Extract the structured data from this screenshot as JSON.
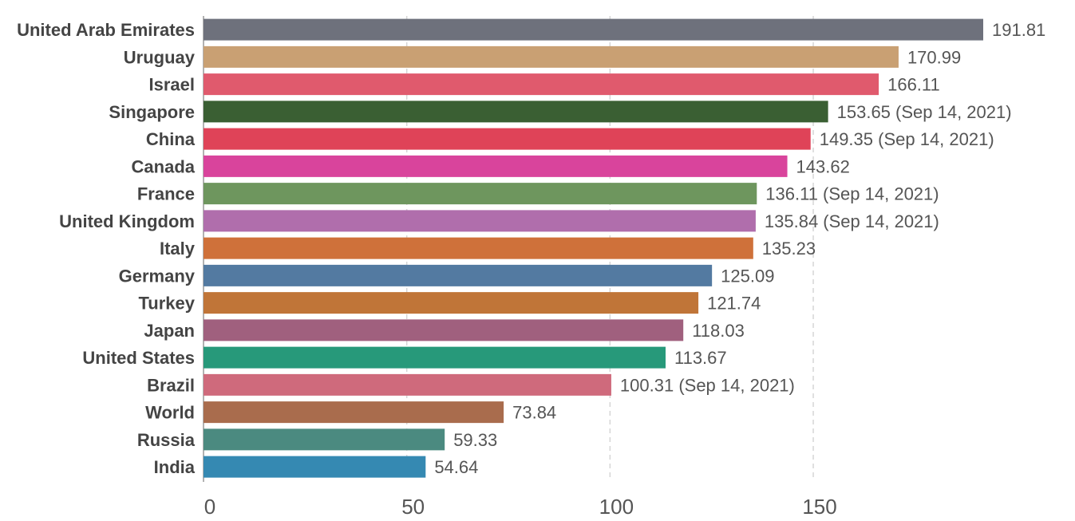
{
  "chart_data": {
    "type": "bar",
    "orientation": "horizontal",
    "title": "",
    "xlabel": "",
    "ylabel": "",
    "xlim": [
      0,
      191.81
    ],
    "x_ticks": [
      0,
      50,
      100,
      150
    ],
    "grid": true,
    "legend": "none",
    "bars": [
      {
        "category": "United Arab Emirates",
        "value": 191.81,
        "label": "191.81",
        "color": "#6e717c"
      },
      {
        "category": "Uruguay",
        "value": 170.99,
        "label": "170.99",
        "color": "#c9a073"
      },
      {
        "category": "Israel",
        "value": 166.11,
        "label": "166.11",
        "color": "#e05a6d"
      },
      {
        "category": "Singapore",
        "value": 153.65,
        "label": "153.65 (Sep 14, 2021)",
        "color": "#3a5f33"
      },
      {
        "category": "China",
        "value": 149.35,
        "label": "149.35 (Sep 14, 2021)",
        "color": "#df4358"
      },
      {
        "category": "Canada",
        "value": 143.62,
        "label": "143.62",
        "color": "#d9449c"
      },
      {
        "category": "France",
        "value": 136.11,
        "label": "136.11 (Sep 14, 2021)",
        "color": "#6e965e"
      },
      {
        "category": "United Kingdom",
        "value": 135.84,
        "label": "135.84 (Sep 14, 2021)",
        "color": "#b06eac"
      },
      {
        "category": "Italy",
        "value": 135.23,
        "label": "135.23",
        "color": "#cf713a"
      },
      {
        "category": "Germany",
        "value": 125.09,
        "label": "125.09",
        "color": "#537aa1"
      },
      {
        "category": "Turkey",
        "value": 121.74,
        "label": "121.74",
        "color": "#c07538"
      },
      {
        "category": "Japan",
        "value": 118.03,
        "label": "118.03",
        "color": "#a0607e"
      },
      {
        "category": "United States",
        "value": 113.67,
        "label": "113.67",
        "color": "#27997a"
      },
      {
        "category": "Brazil",
        "value": 100.31,
        "label": "100.31 (Sep 14, 2021)",
        "color": "#cf6a7c"
      },
      {
        "category": "World",
        "value": 73.84,
        "label": "73.84",
        "color": "#a96c4d"
      },
      {
        "category": "Russia",
        "value": 59.33,
        "label": "59.33",
        "color": "#4b8a80"
      },
      {
        "category": "India",
        "value": 54.64,
        "label": "54.64",
        "color": "#3589b2"
      }
    ]
  }
}
